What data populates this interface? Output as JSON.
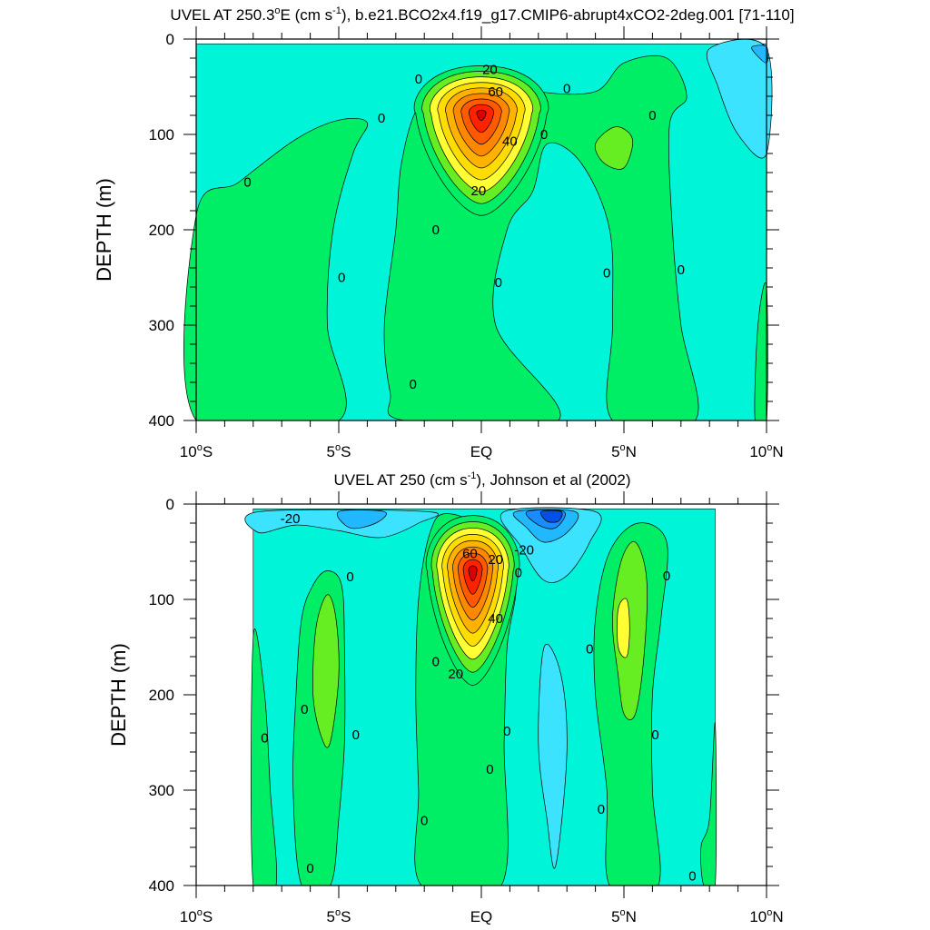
{
  "figure": {
    "colors": {
      "lt_neg40": "#0050e6",
      "lt_neg30": "#1a8cff",
      "lt_neg20": "#22b8ff",
      "lt_neg10": "#3ce3ff",
      "lt_0": "#00f5d8",
      "lt_10": "#00ee66",
      "lt_20": "#66ee22",
      "lt_30": "#ffff33",
      "lt_40": "#ffdd00",
      "lt_50": "#ffb300",
      "lt_60": "#ff8800",
      "lt_70": "#ff5a00",
      "lt_80": "#ff2200",
      "ge_90": "#dd0000",
      "line": "#000000"
    }
  },
  "chart_data": [
    {
      "type": "contour",
      "title_pre": "UVEL AT 250.3",
      "title_deg": "o",
      "title_mid": "E (cm s",
      "title_exp": "-1",
      "title_post": "), b.e21.BCO2x4.f19_g17.CMIP6-abrupt4xCO2-2deg.001 [71-110]",
      "ylabel": "DEPTH (m)",
      "x_ticks": [
        {
          "value": -10,
          "label": "10",
          "deg": "o",
          "hemi": "S"
        },
        {
          "value": -5,
          "label": "5",
          "deg": "o",
          "hemi": "S"
        },
        {
          "value": 0,
          "label": "EQ",
          "deg": "",
          "hemi": ""
        },
        {
          "value": 5,
          "label": "5",
          "deg": "o",
          "hemi": "N"
        },
        {
          "value": 10,
          "label": "10",
          "deg": "o",
          "hemi": "N"
        }
      ],
      "y_ticks": [
        {
          "value": 0,
          "label": "0"
        },
        {
          "value": 100,
          "label": "100"
        },
        {
          "value": 200,
          "label": "200"
        },
        {
          "value": 300,
          "label": "300"
        },
        {
          "value": 400,
          "label": "400"
        }
      ],
      "xlim": [
        -10,
        10
      ],
      "ylim": [
        0,
        400
      ],
      "data_extent": {
        "lat": [
          -10,
          10
        ],
        "depth": [
          5,
          400
        ]
      },
      "background_level": 0,
      "regions": [
        {
          "level": 10,
          "points": [
            [
              -10,
              185
            ],
            [
              -8.5,
              150
            ],
            [
              -6.5,
              105
            ],
            [
              -5,
              85
            ],
            [
              -4,
              88
            ],
            [
              -4.5,
              120
            ],
            [
              -5.2,
              200
            ],
            [
              -5.4,
              300
            ],
            [
              -5,
              400
            ],
            [
              -10,
              400
            ]
          ]
        },
        {
          "level": 10,
          "points": [
            [
              -2.7,
              400
            ],
            [
              -3.2,
              370
            ],
            [
              -3.4,
              300
            ],
            [
              -3.0,
              200
            ],
            [
              -2.8,
              130
            ],
            [
              -2.2,
              70
            ],
            [
              -1.0,
              40
            ],
            [
              0.5,
              40
            ],
            [
              2.0,
              55
            ],
            [
              4.0,
              55
            ],
            [
              5.0,
              25
            ],
            [
              6.5,
              20
            ],
            [
              7.2,
              60
            ],
            [
              6.6,
              90
            ],
            [
              6.7,
              200
            ],
            [
              7.0,
              300
            ],
            [
              7.5,
              400
            ],
            [
              4.6,
              400
            ],
            [
              4.6,
              300
            ],
            [
              4.5,
              200
            ],
            [
              3.5,
              130
            ],
            [
              2.3,
              110
            ],
            [
              1.8,
              160
            ],
            [
              0.9,
              200
            ],
            [
              0.5,
              300
            ],
            [
              2.7,
              400
            ]
          ]
        },
        {
          "level": 10,
          "points": [
            [
              9.6,
              400
            ],
            [
              9.7,
              300
            ],
            [
              10,
              260
            ],
            [
              10,
              400
            ]
          ]
        },
        {
          "level": 20,
          "points": [
            [
              4.0,
              110
            ],
            [
              4.7,
              92
            ],
            [
              5.3,
              105
            ],
            [
              5.0,
              135
            ],
            [
              4.3,
              130
            ]
          ]
        },
        {
          "level": -10,
          "points": [
            [
              8.0,
              10
            ],
            [
              10,
              10
            ],
            [
              10,
              120
            ],
            [
              9.0,
              100
            ],
            [
              8.3,
              50
            ]
          ]
        },
        {
          "level": -20,
          "points": [
            [
              9.5,
              8
            ],
            [
              10,
              8
            ],
            [
              10,
              25
            ],
            [
              9.6,
              15
            ]
          ]
        }
      ],
      "core": {
        "lat": 0,
        "depth": 78,
        "peak": 90,
        "base_top": 28,
        "base_bottom": 185,
        "half_width_lat": 2.3
      },
      "contour_labels": [
        {
          "text": "20",
          "lat": 0.3,
          "depth": 32
        },
        {
          "text": "60",
          "lat": 0.5,
          "depth": 55
        },
        {
          "text": "40",
          "lat": 1.0,
          "depth": 107
        },
        {
          "text": "20",
          "lat": -0.1,
          "depth": 159
        },
        {
          "text": "0",
          "lat": -2.2,
          "depth": 42
        },
        {
          "text": "0",
          "lat": 3.0,
          "depth": 52
        },
        {
          "text": "0",
          "lat": -3.5,
          "depth": 83
        },
        {
          "text": "0",
          "lat": 2.2,
          "depth": 100
        },
        {
          "text": "0",
          "lat": 6.0,
          "depth": 80
        },
        {
          "text": "0",
          "lat": -8.2,
          "depth": 150
        },
        {
          "text": "0",
          "lat": -1.6,
          "depth": 200
        },
        {
          "text": "0",
          "lat": -4.9,
          "depth": 250
        },
        {
          "text": "0",
          "lat": 0.6,
          "depth": 255
        },
        {
          "text": "0",
          "lat": 4.4,
          "depth": 245
        },
        {
          "text": "0",
          "lat": 7.0,
          "depth": 242
        },
        {
          "text": "0",
          "lat": -2.4,
          "depth": 362
        }
      ]
    },
    {
      "type": "contour",
      "title_pre": "UVEL AT 250 (cm s",
      "title_deg": "",
      "title_mid": "",
      "title_exp": "-1",
      "title_post": "), Johnson et al (2002)",
      "ylabel": "DEPTH (m)",
      "x_ticks": [
        {
          "value": -10,
          "label": "10",
          "deg": "o",
          "hemi": "S"
        },
        {
          "value": -5,
          "label": "5",
          "deg": "o",
          "hemi": "S"
        },
        {
          "value": 0,
          "label": "EQ",
          "deg": "",
          "hemi": ""
        },
        {
          "value": 5,
          "label": "5",
          "deg": "o",
          "hemi": "N"
        },
        {
          "value": 10,
          "label": "10",
          "deg": "o",
          "hemi": "N"
        }
      ],
      "y_ticks": [
        {
          "value": 0,
          "label": "0"
        },
        {
          "value": 100,
          "label": "100"
        },
        {
          "value": 200,
          "label": "200"
        },
        {
          "value": 300,
          "label": "300"
        },
        {
          "value": 400,
          "label": "400"
        }
      ],
      "xlim": [
        -10,
        10
      ],
      "ylim": [
        0,
        400
      ],
      "data_extent": {
        "lat": [
          -8,
          8.2
        ],
        "depth": [
          5,
          400
        ]
      },
      "background_level": 0,
      "regions": [
        {
          "level": 10,
          "points": [
            [
              -8,
              400
            ],
            [
              -8,
              140
            ],
            [
              -7.6,
              200
            ],
            [
              -7.4,
              300
            ],
            [
              -7.2,
              400
            ]
          ]
        },
        {
          "level": 10,
          "points": [
            [
              -6.3,
              400
            ],
            [
              -6.6,
              300
            ],
            [
              -6.5,
              200
            ],
            [
              -6.3,
              120
            ],
            [
              -5.9,
              85
            ],
            [
              -5.4,
              70
            ],
            [
              -4.9,
              85
            ],
            [
              -4.8,
              150
            ],
            [
              -4.8,
              250
            ],
            [
              -5.0,
              330
            ],
            [
              -5.3,
              400
            ]
          ]
        },
        {
          "level": 10,
          "points": [
            [
              -2.1,
              400
            ],
            [
              -2.2,
              300
            ],
            [
              -2.3,
              200
            ],
            [
              -2.2,
              100
            ],
            [
              -1.8,
              30
            ],
            [
              -1.2,
              10
            ],
            [
              0.3,
              30
            ],
            [
              1.2,
              80
            ],
            [
              0.9,
              150
            ],
            [
              0.8,
              250
            ],
            [
              0.7,
              400
            ]
          ]
        },
        {
          "level": 10,
          "points": [
            [
              4.5,
              400
            ],
            [
              4.4,
              300
            ],
            [
              4.0,
              200
            ],
            [
              4.0,
              120
            ],
            [
              4.5,
              50
            ],
            [
              5.5,
              20
            ],
            [
              6.5,
              40
            ],
            [
              6.3,
              120
            ],
            [
              6.0,
              200
            ],
            [
              6.0,
              300
            ],
            [
              6.2,
              400
            ]
          ]
        },
        {
          "level": 10,
          "points": [
            [
              8.2,
              230
            ],
            [
              8.2,
              400
            ],
            [
              7.8,
              400
            ],
            [
              7.7,
              360
            ],
            [
              8.0,
              330
            ]
          ]
        },
        {
          "level": 20,
          "points": [
            [
              -5.9,
              200
            ],
            [
              -5.8,
              130
            ],
            [
              -5.4,
              95
            ],
            [
              -5.1,
              120
            ],
            [
              -5.0,
              180
            ],
            [
              -5.3,
              250
            ],
            [
              -5.6,
              245
            ]
          ]
        },
        {
          "level": 20,
          "points": [
            [
              4.8,
              180
            ],
            [
              4.6,
              120
            ],
            [
              4.9,
              60
            ],
            [
              5.4,
              40
            ],
            [
              5.8,
              80
            ],
            [
              5.7,
              160
            ],
            [
              5.4,
              220
            ],
            [
              5.0,
              220
            ]
          ]
        },
        {
          "level": 30,
          "points": [
            [
              4.8,
              150
            ],
            [
              4.8,
              110
            ],
            [
              5.1,
              100
            ],
            [
              5.2,
              130
            ],
            [
              5.1,
              160
            ]
          ]
        },
        {
          "level": -10,
          "points": [
            [
              -7.8,
              8
            ],
            [
              -1.9,
              8
            ],
            [
              -2.2,
              20
            ],
            [
              -3.5,
              35
            ],
            [
              -5.0,
              28
            ],
            [
              -6.5,
              22
            ],
            [
              -7.8,
              30
            ]
          ]
        },
        {
          "level": -20,
          "points": [
            [
              -5.0,
              8
            ],
            [
              -3.4,
              8
            ],
            [
              -3.7,
              20
            ],
            [
              -4.6,
              25
            ]
          ]
        },
        {
          "level": -10,
          "points": [
            [
              0.8,
              8
            ],
            [
              4.0,
              8
            ],
            [
              3.8,
              40
            ],
            [
              3.0,
              75
            ],
            [
              2.2,
              80
            ],
            [
              1.4,
              45
            ]
          ]
        },
        {
          "level": -20,
          "points": [
            [
              1.2,
              8
            ],
            [
              3.3,
              8
            ],
            [
              3.0,
              30
            ],
            [
              2.2,
              40
            ],
            [
              1.6,
              25
            ]
          ]
        },
        {
          "level": -30,
          "points": [
            [
              1.6,
              8
            ],
            [
              2.9,
              8
            ],
            [
              2.6,
              25
            ],
            [
              2.0,
              22
            ]
          ]
        },
        {
          "level": -40,
          "points": [
            [
              2.1,
              8
            ],
            [
              2.8,
              8
            ],
            [
              2.7,
              18
            ],
            [
              2.3,
              18
            ]
          ]
        },
        {
          "level": -10,
          "points": [
            [
              2.2,
              150
            ],
            [
              2.0,
              250
            ],
            [
              2.3,
              330
            ],
            [
              2.6,
              380
            ],
            [
              3.0,
              260
            ],
            [
              2.8,
              180
            ]
          ]
        }
      ],
      "core": {
        "lat": -0.3,
        "depth": 70,
        "peak": 92,
        "base_top": 12,
        "base_bottom": 190,
        "half_width_lat": 1.6
      },
      "contour_labels": [
        {
          "text": "-20",
          "lat": -6.7,
          "depth": 15
        },
        {
          "text": "-20",
          "lat": 1.5,
          "depth": 48
        },
        {
          "text": "60",
          "lat": -0.4,
          "depth": 52
        },
        {
          "text": "20",
          "lat": 0.5,
          "depth": 58
        },
        {
          "text": "0",
          "lat": 1.3,
          "depth": 72
        },
        {
          "text": "40",
          "lat": 0.5,
          "depth": 120
        },
        {
          "text": "20",
          "lat": -0.9,
          "depth": 178
        },
        {
          "text": "0",
          "lat": -1.6,
          "depth": 165
        },
        {
          "text": "0",
          "lat": -4.6,
          "depth": 76
        },
        {
          "text": "0",
          "lat": 3.8,
          "depth": 152
        },
        {
          "text": "0",
          "lat": 6.5,
          "depth": 75
        },
        {
          "text": "0",
          "lat": -6.2,
          "depth": 215
        },
        {
          "text": "0",
          "lat": -7.6,
          "depth": 245
        },
        {
          "text": "0",
          "lat": -4.4,
          "depth": 242
        },
        {
          "text": "0",
          "lat": 0.9,
          "depth": 238
        },
        {
          "text": "0",
          "lat": 6.1,
          "depth": 242
        },
        {
          "text": "0",
          "lat": 0.3,
          "depth": 278
        },
        {
          "text": "0",
          "lat": -2.0,
          "depth": 332
        },
        {
          "text": "0",
          "lat": 4.2,
          "depth": 320
        },
        {
          "text": "0",
          "lat": -6.0,
          "depth": 382
        },
        {
          "text": "0",
          "lat": 7.4,
          "depth": 390
        }
      ]
    }
  ]
}
